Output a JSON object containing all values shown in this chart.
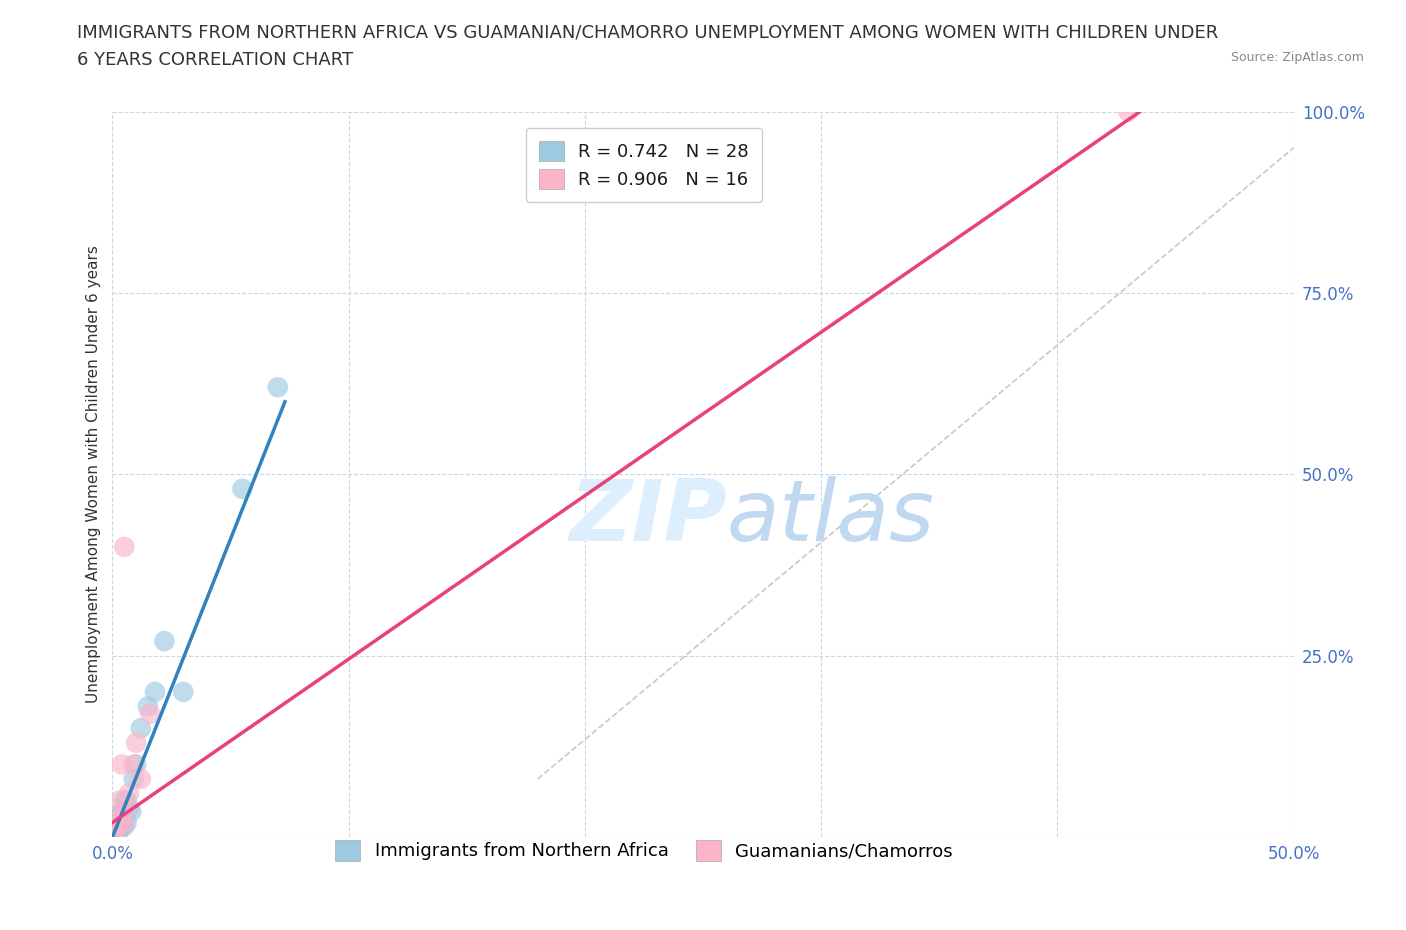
{
  "title_line1": "IMMIGRANTS FROM NORTHERN AFRICA VS GUAMANIAN/CHAMORRO UNEMPLOYMENT AMONG WOMEN WITH CHILDREN UNDER",
  "title_line2": "6 YEARS CORRELATION CHART",
  "source_text": "Source: ZipAtlas.com",
  "ylabel": "Unemployment Among Women with Children Under 6 years",
  "xlim": [
    0.0,
    0.5
  ],
  "ylim": [
    0.0,
    1.0
  ],
  "xticks": [
    0.0,
    0.1,
    0.2,
    0.3,
    0.4,
    0.5
  ],
  "yticks": [
    0.0,
    0.25,
    0.5,
    0.75,
    1.0
  ],
  "blue_R": 0.742,
  "blue_N": 28,
  "pink_R": 0.906,
  "pink_N": 16,
  "blue_color": "#9ecae1",
  "pink_color": "#fbb4c8",
  "blue_line_color": "#3182bd",
  "pink_line_color": "#e8427c",
  "ref_line_color": "#bbbbbb",
  "background_color": "#ffffff",
  "grid_color": "#c8d8e8",
  "tick_color": "#4472c4",
  "watermark_color": "#ddeeff",
  "legend_blue_label": "Immigrants from Northern Africa",
  "legend_pink_label": "Guamanians/Chamorros",
  "blue_x": [
    0.001,
    0.001,
    0.002,
    0.002,
    0.002,
    0.003,
    0.003,
    0.003,
    0.004,
    0.004,
    0.004,
    0.005,
    0.005,
    0.005,
    0.005,
    0.006,
    0.006,
    0.007,
    0.008,
    0.009,
    0.01,
    0.012,
    0.015,
    0.018,
    0.022,
    0.03,
    0.055,
    0.07
  ],
  "blue_y": [
    0.005,
    0.01,
    0.005,
    0.015,
    0.02,
    0.01,
    0.02,
    0.03,
    0.015,
    0.02,
    0.035,
    0.015,
    0.025,
    0.03,
    0.05,
    0.02,
    0.05,
    0.04,
    0.035,
    0.08,
    0.1,
    0.15,
    0.18,
    0.2,
    0.27,
    0.2,
    0.48,
    0.62
  ],
  "pink_x": [
    0.001,
    0.001,
    0.002,
    0.002,
    0.003,
    0.003,
    0.004,
    0.005,
    0.005,
    0.006,
    0.007,
    0.009,
    0.01,
    0.012,
    0.016,
    0.43
  ],
  "pink_y": [
    0.005,
    0.01,
    0.015,
    0.02,
    0.025,
    0.05,
    0.1,
    0.02,
    0.4,
    0.04,
    0.06,
    0.1,
    0.13,
    0.08,
    0.17,
    1.0
  ],
  "blue_line_x": [
    0.0,
    0.073
  ],
  "blue_line_y": [
    0.0,
    0.6
  ],
  "pink_line_x": [
    0.0,
    0.435
  ],
  "pink_line_y": [
    0.02,
    1.0
  ],
  "ref_line_x": [
    0.18,
    0.5
  ],
  "ref_line_y": [
    0.08,
    0.95
  ],
  "title_fontsize": 13,
  "axis_label_fontsize": 11,
  "tick_fontsize": 12,
  "legend_fontsize": 13
}
